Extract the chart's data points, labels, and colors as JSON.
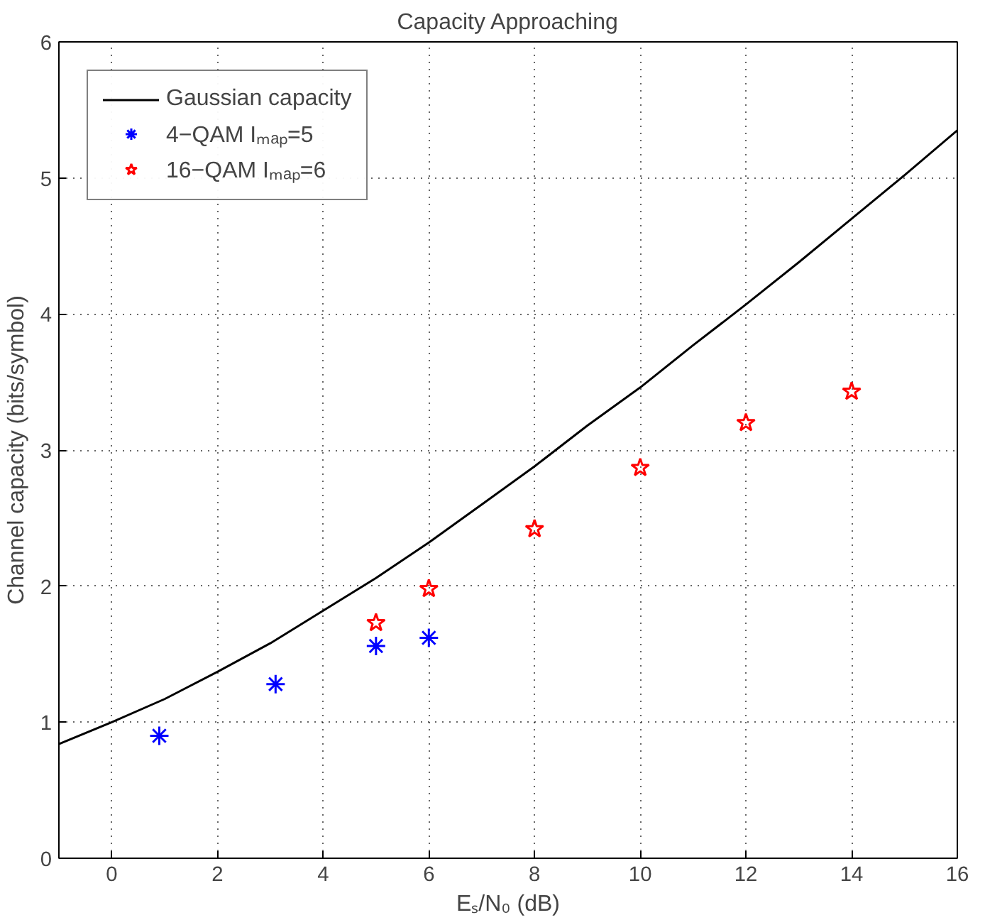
{
  "chart_data": {
    "type": "line",
    "title": "Capacity Approaching",
    "xlabel": "Eₛ/N₀ (dB)",
    "ylabel": "Channel capacity (bits/symbol)",
    "xlim": [
      -1,
      16
    ],
    "ylim": [
      0,
      6
    ],
    "xticks": [
      0,
      2,
      4,
      6,
      8,
      10,
      12,
      14,
      16
    ],
    "yticks": [
      0,
      1,
      2,
      3,
      4,
      5,
      6
    ],
    "grid": true,
    "legend": "top left",
    "series": [
      {
        "name": "Gaussian capacity",
        "marker": "none",
        "color": "#000000",
        "x": [
          -1,
          0,
          1,
          2,
          3,
          4,
          5,
          6,
          7,
          8,
          9,
          10,
          11,
          12,
          13,
          14,
          15,
          16
        ],
        "values": [
          0.84,
          1.0,
          1.17,
          1.37,
          1.58,
          1.82,
          2.06,
          2.32,
          2.6,
          2.88,
          3.18,
          3.46,
          3.77,
          4.07,
          4.38,
          4.7,
          5.02,
          5.35
        ]
      },
      {
        "name": "4−QAM Iₘₐₚ=5",
        "type": "scatter",
        "marker": "cross",
        "color": "#0000ff",
        "x": [
          0.9,
          3.1,
          5,
          6
        ],
        "values": [
          0.9,
          1.28,
          1.56,
          1.62
        ]
      },
      {
        "name": "16−QAM Iₘₐₚ=6",
        "type": "scatter",
        "marker": "star",
        "color": "#ff0000",
        "x": [
          5,
          6,
          8,
          10,
          12,
          14
        ],
        "values": [
          1.73,
          1.98,
          2.42,
          2.87,
          3.2,
          3.43
        ]
      }
    ]
  }
}
